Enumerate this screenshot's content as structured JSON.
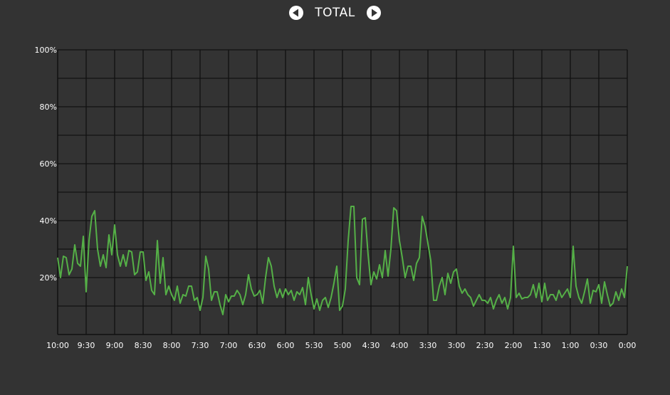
{
  "header": {
    "title": "TOTAL"
  },
  "colors": {
    "background": "#333333",
    "line": "#55b047",
    "grid": "#111111"
  },
  "icons": {
    "prev": "triangle-left-icon",
    "next": "triangle-right-icon"
  },
  "chart_data": {
    "type": "line",
    "title": "TOTAL",
    "xlabel": "",
    "ylabel": "",
    "ylim": [
      0,
      100
    ],
    "y_ticks": [
      "20%",
      "40%",
      "60%",
      "80%",
      "100%"
    ],
    "y_tick_values": [
      20,
      40,
      60,
      80,
      100
    ],
    "x_ticks": [
      "10:00",
      "9:30",
      "9:00",
      "8:30",
      "8:00",
      "7:30",
      "7:00",
      "6:30",
      "6:00",
      "5:30",
      "5:00",
      "4:30",
      "4:00",
      "3:30",
      "3:00",
      "2:30",
      "2:00",
      "1:30",
      "1:00",
      "0:30",
      "0:00"
    ],
    "grid": true,
    "series": [
      {
        "values": [
          27,
          20,
          27.5,
          27,
          21,
          23,
          31.5,
          25,
          24,
          34.5,
          15,
          33,
          41.5,
          43.5,
          30,
          24,
          28,
          23.5,
          35,
          28,
          38.5,
          28,
          24,
          28,
          24,
          29.5,
          29,
          21,
          22,
          29,
          29,
          19,
          22,
          15.5,
          14,
          33,
          18,
          27,
          14,
          17,
          14,
          12,
          17,
          11,
          14,
          13.5,
          17,
          17,
          12,
          13,
          8.5,
          13,
          27.5,
          23,
          12,
          15,
          15,
          10.5,
          7,
          14,
          11.5,
          13.5,
          13.5,
          15.5,
          14,
          10.5,
          14,
          21,
          16,
          13.5,
          14,
          15.5,
          11,
          20,
          27,
          24,
          17,
          13,
          16,
          13,
          16,
          14,
          15.5,
          12,
          15,
          14,
          16.5,
          10.5,
          20,
          14,
          9,
          12.5,
          8.5,
          12,
          13,
          9.5,
          13,
          18,
          24,
          8.5,
          10,
          16,
          33,
          45,
          45,
          20,
          17.5,
          40.5,
          41,
          28,
          17.5,
          22,
          19.5,
          24.5,
          20,
          29.5,
          20.5,
          30,
          44.5,
          43.5,
          33,
          27,
          20,
          24,
          24,
          19,
          25,
          27,
          41.5,
          38,
          32,
          26,
          12,
          12,
          17,
          20,
          14,
          21.5,
          18,
          22,
          23,
          17,
          14.5,
          16,
          14,
          13,
          10,
          12,
          14,
          12,
          12,
          11,
          13,
          9,
          12,
          14,
          11,
          13,
          9,
          13,
          31,
          13,
          14.5,
          12.5,
          13,
          13,
          14,
          17.5,
          13,
          18,
          11.5,
          18,
          12,
          14,
          14,
          12,
          15.5,
          13,
          14.5,
          16,
          13,
          31,
          17,
          13,
          11,
          15,
          19.5,
          11,
          15.5,
          15,
          17.5,
          11,
          18.5,
          14,
          10,
          11,
          15,
          12,
          16,
          13,
          24
        ]
      }
    ]
  }
}
